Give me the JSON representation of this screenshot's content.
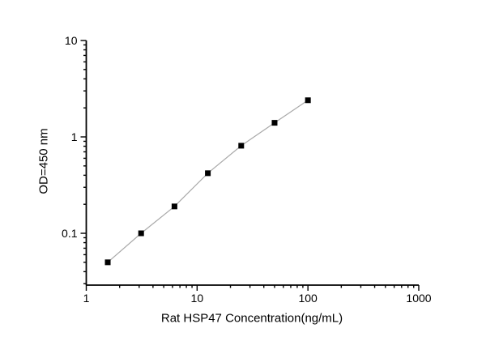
{
  "figure": {
    "background_color": "#ffffff"
  },
  "chart_data": {
    "type": "line",
    "x": [
      1.5625,
      3.125,
      6.25,
      12.5,
      25,
      50,
      100
    ],
    "y": [
      0.05,
      0.1,
      0.19,
      0.42,
      0.81,
      1.4,
      2.4
    ],
    "title": "",
    "xlabel": "Rat HSP47 Concentration(ng/mL)",
    "ylabel": "OD=450 nm",
    "xscale": "log",
    "yscale": "log",
    "xlim": [
      1,
      1000
    ],
    "ylim": [
      0.029,
      10
    ],
    "x_ticks": [
      1,
      10,
      100,
      1000
    ],
    "x_tick_labels": [
      "1",
      "10",
      "100",
      "1000"
    ],
    "y_ticks": [
      0.1,
      1,
      10
    ],
    "y_tick_labels": [
      "0.1",
      "1",
      "10"
    ],
    "grid": false,
    "legend": false,
    "marker": "square",
    "marker_size": 7,
    "marker_color": "#000000",
    "line_color": "#a9a9a9",
    "axis_color": "#000000",
    "text_color": "#000000"
  }
}
